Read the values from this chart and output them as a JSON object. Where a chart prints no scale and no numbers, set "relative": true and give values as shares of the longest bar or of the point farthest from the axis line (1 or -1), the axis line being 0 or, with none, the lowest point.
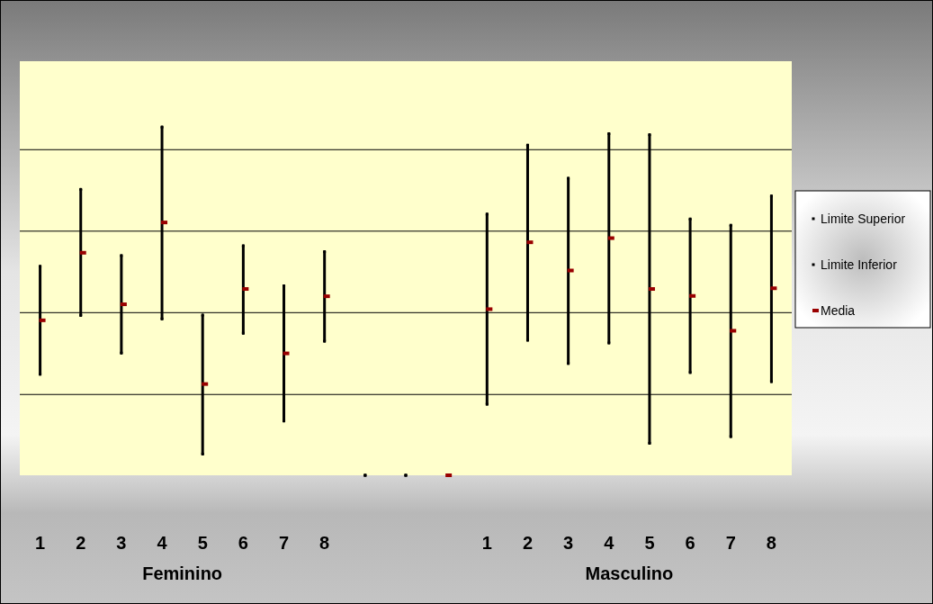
{
  "chart_data": {
    "type": "scatter",
    "relative": true,
    "categories": [
      "1",
      "2",
      "3",
      "4",
      "5",
      "6",
      "7",
      "8",
      null,
      null,
      null,
      "1",
      "2",
      "3",
      "4",
      "5",
      "6",
      "7",
      "8"
    ],
    "series": [
      {
        "name": "Limite Superior",
        "color": "#000000",
        "marker": "square",
        "values": [
          0.6,
          0.821,
          0.631,
          1.0,
          0.46,
          0.659,
          0.544,
          0.642,
          0,
          0,
          null,
          0.75,
          0.948,
          0.853,
          0.981,
          0.978,
          0.736,
          0.718,
          0.802
        ]
      },
      {
        "name": "Limite Inferior",
        "color": "#000000",
        "marker": "square",
        "values": [
          0.29,
          0.459,
          0.351,
          0.449,
          0.061,
          0.408,
          0.156,
          0.385,
          0,
          0,
          null,
          0.204,
          0.388,
          0.321,
          0.38,
          0.092,
          0.295,
          0.111,
          0.269
        ]
      },
      {
        "name": "Media",
        "color": "#990000",
        "marker": "square",
        "values": [
          0.445,
          0.639,
          0.491,
          0.726,
          0.262,
          0.535,
          0.35,
          0.514,
          null,
          null,
          0,
          0.477,
          0.669,
          0.588,
          0.681,
          0.535,
          0.515,
          0.415,
          0.537
        ]
      }
    ],
    "ref_lines": [
      {
        "axis": "y",
        "value": 0.232
      },
      {
        "axis": "y",
        "value": 0.467
      },
      {
        "axis": "y",
        "value": 0.701
      },
      {
        "axis": "y",
        "value": 0.935
      }
    ],
    "annotations": [
      "Feminino",
      "Masculino"
    ],
    "legend": "right"
  }
}
